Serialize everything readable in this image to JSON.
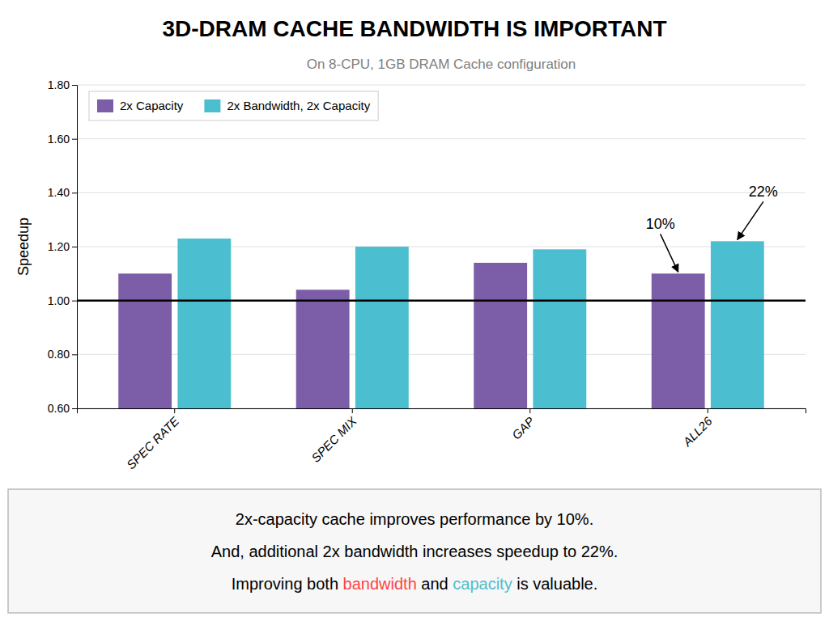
{
  "chart_data": {
    "type": "bar",
    "title": "3D-DRAM CACHE BANDWIDTH IS IMPORTANT",
    "subtitle": "On 8-CPU, 1GB DRAM Cache configuration",
    "categories": [
      "SPEC RATE",
      "SPEC MIX",
      "GAP",
      "ALL26"
    ],
    "series": [
      {
        "name": "2x Capacity",
        "color": "#7b5ea7",
        "values": [
          1.1,
          1.04,
          1.14,
          1.1
        ]
      },
      {
        "name": "2x Bandwidth, 2x Capacity",
        "color": "#4bbfcf",
        "values": [
          1.23,
          1.2,
          1.19,
          1.22
        ]
      }
    ],
    "ylabel": "Speedup",
    "ylim": [
      0.6,
      1.8
    ],
    "yticks": [
      {
        "value": 0.6,
        "label": "0.60"
      },
      {
        "value": 0.8,
        "label": "0.80"
      },
      {
        "value": 1.0,
        "label": "1.00"
      },
      {
        "value": 1.2,
        "label": "1.20"
      },
      {
        "value": 1.4,
        "label": "1.40"
      },
      {
        "value": 1.6,
        "label": "1.60"
      },
      {
        "value": 1.8,
        "label": "1.80"
      }
    ],
    "baseline": 1.0,
    "grid": true,
    "legend": "upper left",
    "annotations": [
      {
        "text": "10%",
        "category": "ALL26",
        "series": "2x Capacity"
      },
      {
        "text": "22%",
        "category": "ALL26",
        "series": "2x Bandwidth, 2x Capacity"
      }
    ],
    "footer": [
      "2x-capacity cache improves performance by 10%.",
      "And, additional 2x bandwidth increases speedup to 22%."
    ],
    "footer_parts": [
      {
        "text": "Improving both "
      },
      {
        "text": "bandwidth",
        "color": "#ff4444"
      },
      {
        "text": " and "
      },
      {
        "text": "capacity",
        "color": "#4bbfcf"
      },
      {
        "text": " is valuable."
      }
    ]
  }
}
